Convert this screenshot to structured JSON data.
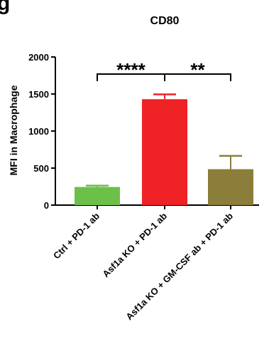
{
  "panel_letter": "g",
  "chart_data": {
    "type": "bar",
    "title": "CD80",
    "xlabel": "",
    "ylabel": "MFI in Macrophage",
    "ylim": [
      0,
      2000
    ],
    "yticks": [
      "0",
      "500",
      "1000",
      "1500",
      "2000"
    ],
    "categories": [
      "Ctrl + PD-1 ab",
      "Asf1a KO + PD-1 ab",
      "Asf1a KO + GM-CSF ab + PD-1 ab"
    ],
    "values": [
      245,
      1430,
      485
    ],
    "errors": [
      18,
      65,
      180
    ],
    "colors": [
      "#6cc04a",
      "#ee2224",
      "#8b7d3a"
    ],
    "significance": [
      {
        "from": 0,
        "to": 1,
        "label": "****"
      },
      {
        "from": 1,
        "to": 2,
        "label": "**"
      }
    ],
    "grid": false,
    "legend": "none"
  }
}
